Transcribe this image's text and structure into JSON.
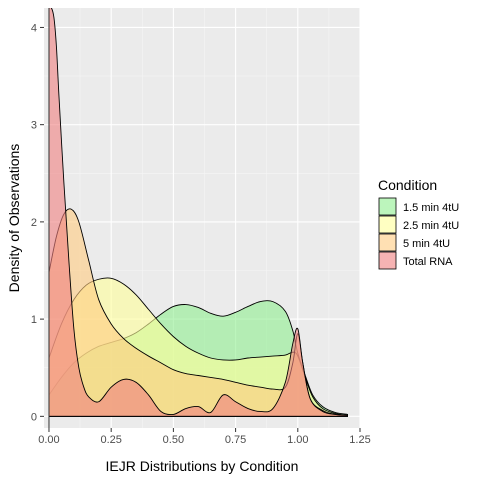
{
  "chart_data": {
    "type": "area",
    "title": "",
    "xlabel": "IEJR Distributions by Condition",
    "ylabel": "Density of Observations",
    "xlim": [
      -0.02,
      1.25
    ],
    "ylim": [
      -0.12,
      4.2
    ],
    "x_ticks": [
      0,
      0.25,
      0.5,
      0.75,
      1.0,
      1.25
    ],
    "x_tick_labels": [
      "0.00",
      "0.25",
      "0.50",
      "0.75",
      "1.00",
      "1.25"
    ],
    "y_ticks": [
      0,
      1,
      2,
      3,
      4
    ],
    "y_tick_labels": [
      "0",
      "1",
      "2",
      "3",
      "4"
    ],
    "grid": true,
    "background": "#ebebeb",
    "legend": {
      "title": "Condition",
      "position": "right"
    },
    "series": [
      {
        "name": "1.5 min 4tU",
        "color": "#90ee90",
        "x": [
          0,
          0.05,
          0.1,
          0.15,
          0.2,
          0.25,
          0.3,
          0.35,
          0.4,
          0.45,
          0.5,
          0.55,
          0.6,
          0.65,
          0.7,
          0.75,
          0.8,
          0.85,
          0.9,
          0.95,
          0.98,
          1.0,
          1.03,
          1.06,
          1.1,
          1.15,
          1.2
        ],
        "values": [
          0.22,
          0.4,
          0.55,
          0.65,
          0.72,
          0.76,
          0.8,
          0.86,
          0.95,
          1.05,
          1.13,
          1.15,
          1.12,
          1.06,
          1.03,
          1.07,
          1.13,
          1.18,
          1.18,
          1.08,
          0.88,
          0.65,
          0.42,
          0.22,
          0.1,
          0.04,
          0.02
        ]
      },
      {
        "name": "2.5 min 4tU",
        "color": "#ffff99",
        "x": [
          0,
          0.05,
          0.1,
          0.15,
          0.2,
          0.25,
          0.3,
          0.35,
          0.4,
          0.45,
          0.5,
          0.55,
          0.6,
          0.65,
          0.7,
          0.75,
          0.8,
          0.85,
          0.9,
          0.95,
          0.98,
          1.0,
          1.03,
          1.06,
          1.1,
          1.15,
          1.2
        ],
        "values": [
          0.6,
          0.95,
          1.2,
          1.35,
          1.41,
          1.42,
          1.36,
          1.25,
          1.1,
          0.95,
          0.82,
          0.72,
          0.65,
          0.6,
          0.58,
          0.58,
          0.6,
          0.61,
          0.62,
          0.63,
          0.66,
          0.62,
          0.4,
          0.2,
          0.08,
          0.03,
          0.01
        ]
      },
      {
        "name": "5 min 4tU",
        "color": "#ffcc80",
        "x": [
          0,
          0.03,
          0.06,
          0.09,
          0.12,
          0.16,
          0.2,
          0.25,
          0.3,
          0.35,
          0.4,
          0.45,
          0.5,
          0.55,
          0.6,
          0.65,
          0.7,
          0.75,
          0.8,
          0.85,
          0.9,
          0.95,
          0.98,
          1.0,
          1.02,
          1.05,
          1.1,
          1.15,
          1.2
        ],
        "values": [
          1.48,
          1.85,
          2.08,
          2.13,
          2.0,
          1.6,
          1.2,
          0.95,
          0.8,
          0.7,
          0.62,
          0.55,
          0.48,
          0.44,
          0.42,
          0.4,
          0.38,
          0.35,
          0.32,
          0.3,
          0.28,
          0.3,
          0.55,
          0.85,
          0.55,
          0.18,
          0.06,
          0.02,
          0.01
        ]
      },
      {
        "name": "Total RNA",
        "color": "#f08080",
        "x": [
          0,
          0.01,
          0.02,
          0.03,
          0.04,
          0.06,
          0.08,
          0.1,
          0.12,
          0.14,
          0.16,
          0.2,
          0.25,
          0.3,
          0.35,
          0.4,
          0.45,
          0.5,
          0.55,
          0.6,
          0.65,
          0.7,
          0.75,
          0.8,
          0.85,
          0.9,
          0.95,
          0.98,
          1.0,
          1.02,
          1.05,
          1.1,
          1.15,
          1.2
        ],
        "values": [
          4.2,
          4.2,
          4.1,
          3.8,
          3.3,
          2.4,
          1.6,
          0.9,
          0.5,
          0.3,
          0.2,
          0.15,
          0.3,
          0.38,
          0.35,
          0.22,
          0.05,
          0.02,
          0.08,
          0.1,
          0.04,
          0.22,
          0.15,
          0.08,
          0.05,
          0.08,
          0.35,
          0.75,
          0.9,
          0.55,
          0.18,
          0.05,
          0.02,
          0.01
        ]
      }
    ]
  }
}
